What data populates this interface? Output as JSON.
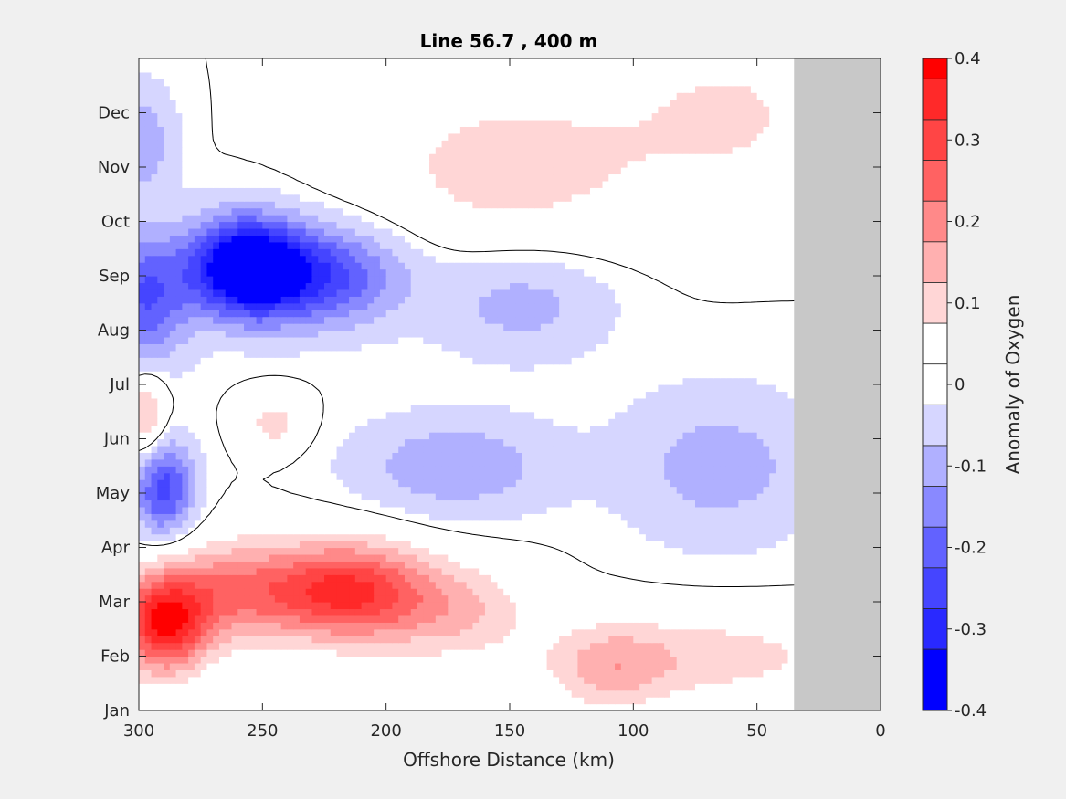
{
  "chart_data": {
    "type": "heatmap",
    "subtype": "filled-contour",
    "title": "Line 56.7 , 400 m",
    "xlabel": "Offshore Distance (km)",
    "ylabel": "",
    "xlim": [
      300,
      0
    ],
    "x_reversed": true,
    "x_ticks": [
      "300",
      "250",
      "200",
      "150",
      "100",
      "50",
      "0"
    ],
    "y_ticks": [
      "Jan",
      "Feb",
      "Mar",
      "Apr",
      "May",
      "Jun",
      "Jul",
      "Aug",
      "Sep",
      "Oct",
      "Nov",
      "Dec"
    ],
    "no_data_region": {
      "x_from": 35,
      "x_to": 0,
      "color": "#c8c8c8"
    },
    "zero_contour": true,
    "colorbar": {
      "label": "Anomaly of Oxygen",
      "ticks": [
        "0.4",
        "0.3",
        "0.2",
        "0.1",
        "0",
        "-0.1",
        "-0.2",
        "-0.3",
        "-0.4"
      ],
      "clim": [
        -0.4,
        0.4
      ],
      "levels": [
        {
          "from": 0.375,
          "to": 0.4,
          "color": "#ff0000"
        },
        {
          "from": 0.325,
          "to": 0.375,
          "color": "#ff2929"
        },
        {
          "from": 0.275,
          "to": 0.325,
          "color": "#ff4545"
        },
        {
          "from": 0.225,
          "to": 0.275,
          "color": "#ff6262"
        },
        {
          "from": 0.175,
          "to": 0.225,
          "color": "#ff8989"
        },
        {
          "from": 0.125,
          "to": 0.175,
          "color": "#ffb0b0"
        },
        {
          "from": 0.075,
          "to": 0.125,
          "color": "#ffd6d6"
        },
        {
          "from": 0.025,
          "to": 0.075,
          "color": "#ffffff"
        },
        {
          "from": -0.025,
          "to": 0.025,
          "color": "#ffffff"
        },
        {
          "from": -0.075,
          "to": -0.025,
          "color": "#d6d6ff"
        },
        {
          "from": -0.125,
          "to": -0.075,
          "color": "#b0b0ff"
        },
        {
          "from": -0.175,
          "to": -0.125,
          "color": "#8989ff"
        },
        {
          "from": -0.225,
          "to": -0.175,
          "color": "#6262ff"
        },
        {
          "from": -0.275,
          "to": -0.225,
          "color": "#4545ff"
        },
        {
          "from": -0.325,
          "to": -0.275,
          "color": "#2929ff"
        },
        {
          "from": -0.4,
          "to": -0.325,
          "color": "#0000ff"
        }
      ]
    },
    "anomaly_features": [
      {
        "x": 290,
        "month": 1.6,
        "value": 0.36,
        "sx": 18,
        "sy": 0.9
      },
      {
        "x": 262,
        "month": 2.2,
        "value": 0.2,
        "sx": 30,
        "sy": 0.9
      },
      {
        "x": 215,
        "month": 2.2,
        "value": 0.33,
        "sx": 32,
        "sy": 0.9
      },
      {
        "x": 170,
        "month": 1.8,
        "value": 0.12,
        "sx": 30,
        "sy": 0.9
      },
      {
        "x": 110,
        "month": 0.8,
        "value": 0.13,
        "sx": 25,
        "sy": 0.8
      },
      {
        "x": 65,
        "month": 1.0,
        "value": 0.1,
        "sx": 50,
        "sy": 0.8
      },
      {
        "x": 258,
        "month": 8.2,
        "value": -0.36,
        "sx": 22,
        "sy": 0.9
      },
      {
        "x": 230,
        "month": 8.0,
        "value": -0.27,
        "sx": 35,
        "sy": 0.9
      },
      {
        "x": 298,
        "month": 7.6,
        "value": -0.22,
        "sx": 18,
        "sy": 1.2
      },
      {
        "x": 145,
        "month": 7.5,
        "value": -0.1,
        "sx": 35,
        "sy": 1.0
      },
      {
        "x": 172,
        "month": 4.5,
        "value": -0.12,
        "sx": 40,
        "sy": 0.9
      },
      {
        "x": 65,
        "month": 4.5,
        "value": -0.1,
        "sx": 40,
        "sy": 1.4
      },
      {
        "x": 290,
        "month": 4.1,
        "value": -0.25,
        "sx": 12,
        "sy": 0.9
      },
      {
        "x": 300,
        "month": 10.5,
        "value": -0.12,
        "sx": 14,
        "sy": 1.0
      },
      {
        "x": 150,
        "month": 10.0,
        "value": 0.1,
        "sx": 60,
        "sy": 1.6
      },
      {
        "x": 60,
        "month": 11.0,
        "value": 0.08,
        "sx": 45,
        "sy": 1.5
      },
      {
        "x": 297,
        "month": 5.4,
        "value": 0.15,
        "sx": 8,
        "sy": 0.8
      },
      {
        "x": 245,
        "month": 5.3,
        "value": 0.1,
        "sx": 12,
        "sy": 0.5
      }
    ]
  }
}
